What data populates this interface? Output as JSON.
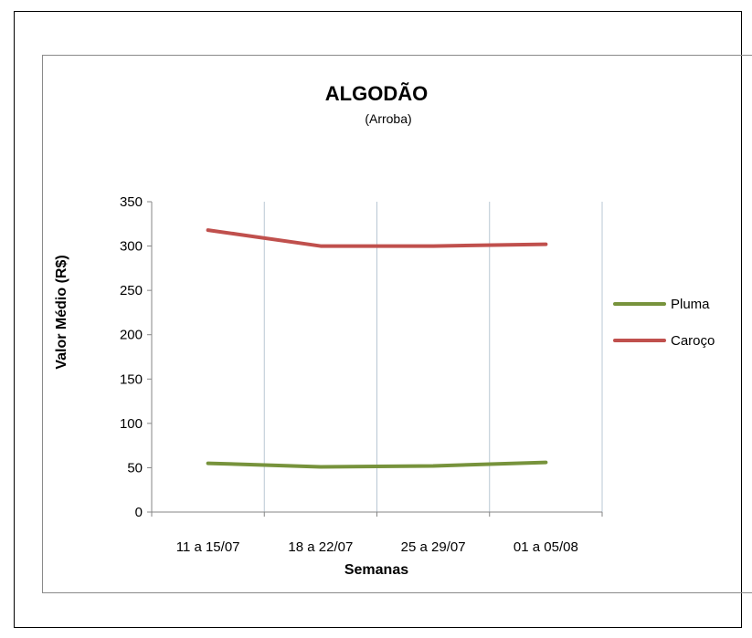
{
  "chart_data": {
    "type": "line",
    "title": "ALGODÃO",
    "subtitle": "(Arroba)",
    "xlabel": "Semanas",
    "ylabel": "Valor Médio (R$)",
    "categories": [
      "11 a 15/07",
      "18 a 22/07",
      "25 a 29/07",
      "01 a 05/08"
    ],
    "ylim": [
      0,
      350
    ],
    "yticks": [
      0,
      50,
      100,
      150,
      200,
      250,
      300,
      350
    ],
    "grid": "vertical",
    "legend": "right",
    "series": [
      {
        "name": "Pluma",
        "color": "#77933c",
        "values": [
          55,
          51,
          52,
          56
        ]
      },
      {
        "name": "Caroço",
        "color": "#c0504d",
        "values": [
          318,
          300,
          300,
          302
        ]
      }
    ]
  }
}
